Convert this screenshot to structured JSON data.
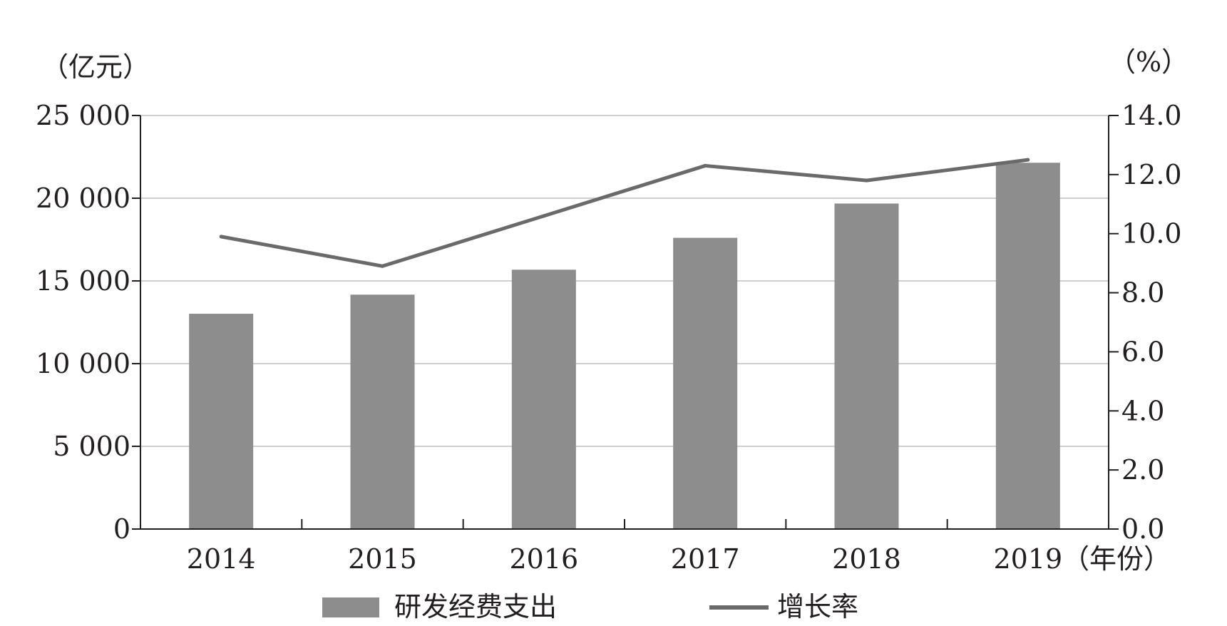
{
  "chart_data": {
    "type": "bar",
    "categories": [
      "2014",
      "2015",
      "2016",
      "2017",
      "2018",
      "2019"
    ],
    "series": [
      {
        "name": "研发经费支出",
        "type": "bar",
        "axis": "left",
        "color": "#8e8d8d",
        "values": [
          13016,
          14170,
          15677,
          17606,
          19678,
          22144
        ]
      },
      {
        "name": "增长率",
        "type": "line",
        "axis": "right",
        "color": "#6b6a6a",
        "values": [
          9.9,
          8.9,
          10.6,
          12.3,
          11.8,
          12.5
        ]
      }
    ],
    "y_left": {
      "unit_label": "（亿元）",
      "ylim": [
        0,
        25000
      ],
      "tick_labels": [
        "0",
        "5 000",
        "10 000",
        "15 000",
        "20 000",
        "25 000"
      ]
    },
    "y_right": {
      "unit_label": "（%）",
      "ylim": [
        0,
        14
      ],
      "tick_labels": [
        "0.0",
        "2.0",
        "4.0",
        "6.0",
        "8.0",
        "10.0",
        "12.0",
        "14.0"
      ]
    },
    "x_unit_label": "（年份）",
    "grid": true,
    "legend": {
      "position": "bottom"
    }
  }
}
